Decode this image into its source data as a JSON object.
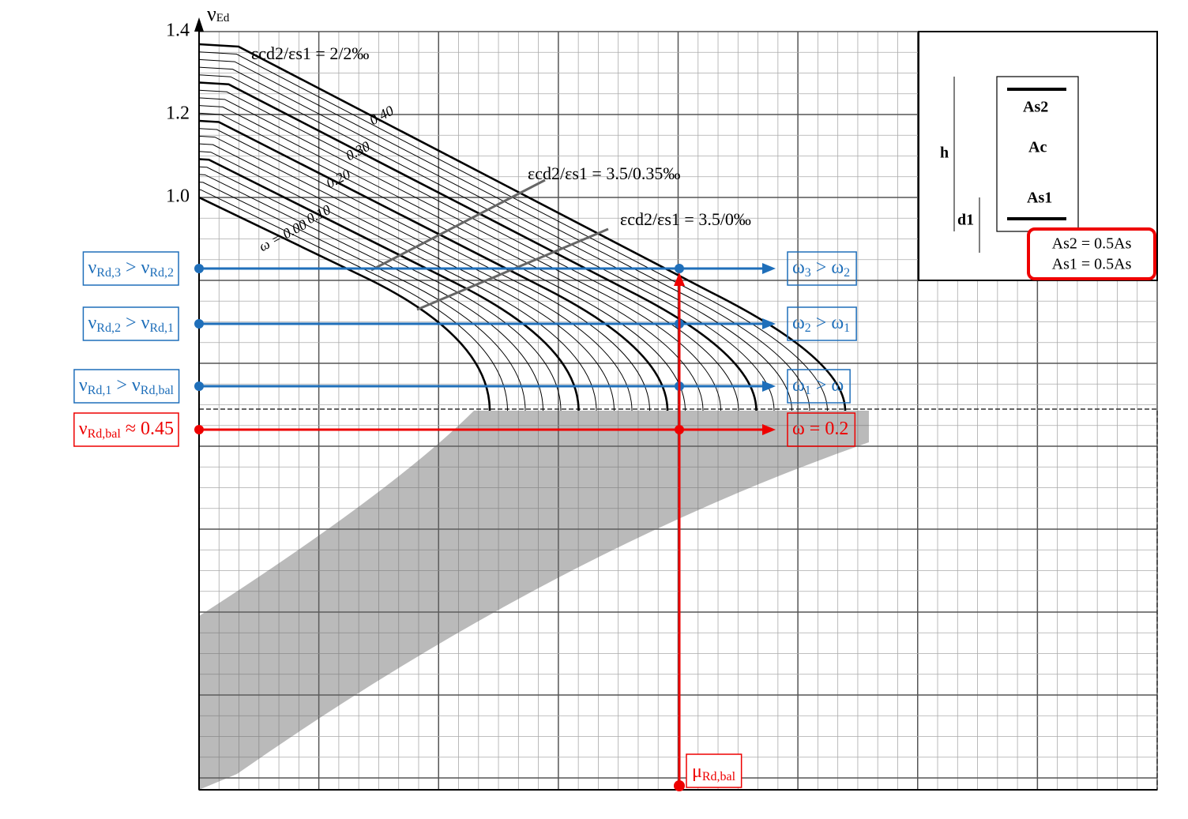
{
  "axis": {
    "y_label": "ν",
    "y_label_sub": "Ed",
    "y_ticks": [
      "1.4",
      "1.2",
      "1.0"
    ]
  },
  "strain_labels": [
    "εcd2/εs1 = 2/2‰",
    "εcd2/εs1 = 3.5/0.35‰",
    "εcd2/εs1 = 3.5/0‰"
  ],
  "curve_labels": [
    "0.40",
    "0.30",
    "0.20",
    "0.10",
    "ω = 0.00"
  ],
  "section": {
    "h": "h",
    "d1": "d1",
    "As2": "As2",
    "Ac": "Ac",
    "As1": "As1",
    "note": [
      "As2 = 0.5As",
      "As1 = 0.5As"
    ]
  },
  "left_labels": [
    [
      "ν",
      "Rd,3",
      " > ν",
      "Rd,2"
    ],
    [
      "ν",
      "Rd,2",
      " > ν",
      "Rd,1"
    ],
    [
      "ν",
      "Rd,1",
      " > ν",
      "Rd,bal"
    ],
    [
      "ν",
      "Rd,bal",
      " ≈ 0.45"
    ]
  ],
  "right_labels": [
    [
      "ω",
      "3",
      " > ω",
      "2"
    ],
    [
      "ω",
      "2",
      " > ω",
      "1"
    ],
    [
      "ω",
      "1",
      " > ω"
    ],
    [
      "ω = 0.2"
    ]
  ],
  "bottom_label": [
    "μ",
    "Rd,bal"
  ]
}
